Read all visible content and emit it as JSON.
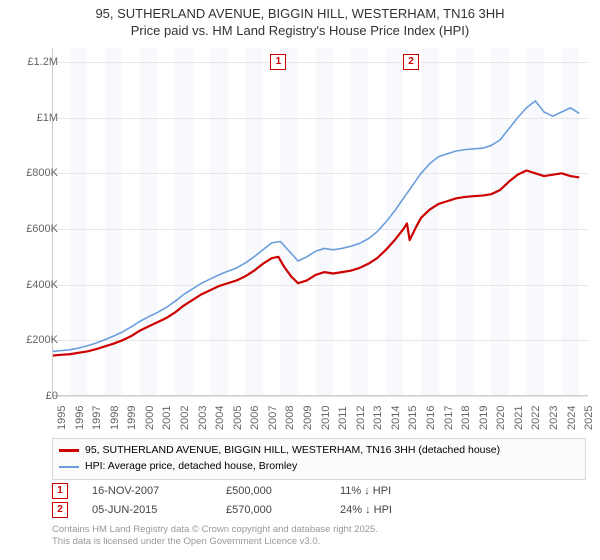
{
  "title_line1": "95, SUTHERLAND AVENUE, BIGGIN HILL, WESTERHAM, TN16 3HH",
  "title_line2": "Price paid vs. HM Land Registry's House Price Index (HPI)",
  "chart": {
    "type": "line",
    "background_color": "#ffffff",
    "grid_color": "#e6e6e6",
    "x_axis": {
      "min": 1995,
      "max": 2025.5,
      "ticks": [
        1995,
        1996,
        1997,
        1998,
        1999,
        2000,
        2001,
        2002,
        2003,
        2004,
        2005,
        2006,
        2007,
        2008,
        2009,
        2010,
        2011,
        2012,
        2013,
        2014,
        2015,
        2016,
        2017,
        2018,
        2019,
        2020,
        2021,
        2022,
        2023,
        2024,
        2025
      ],
      "label_fontsize": 11,
      "label_color": "#666666",
      "label_rotation": -90
    },
    "y_axis": {
      "min": 0,
      "max": 1250000,
      "ticks": [
        {
          "v": 0,
          "label": "£0"
        },
        {
          "v": 200000,
          "label": "£200K"
        },
        {
          "v": 400000,
          "label": "£400K"
        },
        {
          "v": 600000,
          "label": "£600K"
        },
        {
          "v": 800000,
          "label": "£800K"
        },
        {
          "v": 1000000,
          "label": "£1M"
        },
        {
          "v": 1200000,
          "label": "£1.2M"
        }
      ],
      "label_fontsize": 11,
      "label_color": "#666666"
    },
    "alternating_bands": {
      "colors": [
        "#ffffff",
        "#f1f5fb"
      ],
      "years": [
        1995,
        1996,
        1997,
        1998,
        1999,
        2000,
        2001,
        2002,
        2003,
        2004,
        2005,
        2006,
        2007,
        2008,
        2009,
        2010,
        2011,
        2012,
        2013,
        2014,
        2015,
        2016,
        2017,
        2018,
        2019,
        2020,
        2021,
        2022,
        2023,
        2024,
        2025
      ]
    },
    "series": [
      {
        "name": "price_paid",
        "label": "95, SUTHERLAND AVENUE, BIGGIN HILL, WESTERHAM, TN16 3HH (detached house)",
        "color": "#cc0000",
        "line_width": 2.2,
        "data": [
          {
            "x": 1995.0,
            "y": 145000
          },
          {
            "x": 1995.5,
            "y": 148000
          },
          {
            "x": 1996.0,
            "y": 150000
          },
          {
            "x": 1996.5,
            "y": 155000
          },
          {
            "x": 1997.0,
            "y": 160000
          },
          {
            "x": 1997.5,
            "y": 168000
          },
          {
            "x": 1998.0,
            "y": 178000
          },
          {
            "x": 1998.5,
            "y": 188000
          },
          {
            "x": 1999.0,
            "y": 200000
          },
          {
            "x": 1999.5,
            "y": 215000
          },
          {
            "x": 2000.0,
            "y": 235000
          },
          {
            "x": 2000.5,
            "y": 250000
          },
          {
            "x": 2001.0,
            "y": 265000
          },
          {
            "x": 2001.5,
            "y": 280000
          },
          {
            "x": 2002.0,
            "y": 300000
          },
          {
            "x": 2002.5,
            "y": 325000
          },
          {
            "x": 2003.0,
            "y": 345000
          },
          {
            "x": 2003.5,
            "y": 365000
          },
          {
            "x": 2004.0,
            "y": 380000
          },
          {
            "x": 2004.5,
            "y": 395000
          },
          {
            "x": 2005.0,
            "y": 405000
          },
          {
            "x": 2005.5,
            "y": 415000
          },
          {
            "x": 2006.0,
            "y": 430000
          },
          {
            "x": 2006.5,
            "y": 450000
          },
          {
            "x": 2007.0,
            "y": 475000
          },
          {
            "x": 2007.5,
            "y": 495000
          },
          {
            "x": 2007.88,
            "y": 500000
          },
          {
            "x": 2008.2,
            "y": 465000
          },
          {
            "x": 2008.6,
            "y": 430000
          },
          {
            "x": 2009.0,
            "y": 405000
          },
          {
            "x": 2009.5,
            "y": 415000
          },
          {
            "x": 2010.0,
            "y": 435000
          },
          {
            "x": 2010.5,
            "y": 445000
          },
          {
            "x": 2011.0,
            "y": 440000
          },
          {
            "x": 2011.5,
            "y": 445000
          },
          {
            "x": 2012.0,
            "y": 450000
          },
          {
            "x": 2012.5,
            "y": 460000
          },
          {
            "x": 2013.0,
            "y": 475000
          },
          {
            "x": 2013.5,
            "y": 495000
          },
          {
            "x": 2014.0,
            "y": 525000
          },
          {
            "x": 2014.5,
            "y": 560000
          },
          {
            "x": 2015.0,
            "y": 600000
          },
          {
            "x": 2015.2,
            "y": 620000
          },
          {
            "x": 2015.35,
            "y": 560000
          },
          {
            "x": 2015.43,
            "y": 570000
          },
          {
            "x": 2015.7,
            "y": 605000
          },
          {
            "x": 2016.0,
            "y": 640000
          },
          {
            "x": 2016.5,
            "y": 670000
          },
          {
            "x": 2017.0,
            "y": 690000
          },
          {
            "x": 2017.5,
            "y": 700000
          },
          {
            "x": 2018.0,
            "y": 710000
          },
          {
            "x": 2018.5,
            "y": 715000
          },
          {
            "x": 2019.0,
            "y": 718000
          },
          {
            "x": 2019.5,
            "y": 720000
          },
          {
            "x": 2020.0,
            "y": 725000
          },
          {
            "x": 2020.5,
            "y": 740000
          },
          {
            "x": 2021.0,
            "y": 770000
          },
          {
            "x": 2021.5,
            "y": 795000
          },
          {
            "x": 2022.0,
            "y": 810000
          },
          {
            "x": 2022.5,
            "y": 800000
          },
          {
            "x": 2023.0,
            "y": 790000
          },
          {
            "x": 2023.5,
            "y": 795000
          },
          {
            "x": 2024.0,
            "y": 800000
          },
          {
            "x": 2024.5,
            "y": 790000
          },
          {
            "x": 2025.0,
            "y": 785000
          }
        ]
      },
      {
        "name": "hpi",
        "label": "HPI: Average price, detached house, Bromley",
        "color": "#6a9edc",
        "line_width": 1.6,
        "data": [
          {
            "x": 1995.0,
            "y": 160000
          },
          {
            "x": 1995.5,
            "y": 163000
          },
          {
            "x": 1996.0,
            "y": 166000
          },
          {
            "x": 1996.5,
            "y": 172000
          },
          {
            "x": 1997.0,
            "y": 180000
          },
          {
            "x": 1997.5,
            "y": 190000
          },
          {
            "x": 1998.0,
            "y": 202000
          },
          {
            "x": 1998.5,
            "y": 215000
          },
          {
            "x": 1999.0,
            "y": 230000
          },
          {
            "x": 1999.5,
            "y": 248000
          },
          {
            "x": 2000.0,
            "y": 268000
          },
          {
            "x": 2000.5,
            "y": 285000
          },
          {
            "x": 2001.0,
            "y": 300000
          },
          {
            "x": 2001.5,
            "y": 318000
          },
          {
            "x": 2002.0,
            "y": 340000
          },
          {
            "x": 2002.5,
            "y": 365000
          },
          {
            "x": 2003.0,
            "y": 385000
          },
          {
            "x": 2003.5,
            "y": 405000
          },
          {
            "x": 2004.0,
            "y": 420000
          },
          {
            "x": 2004.5,
            "y": 435000
          },
          {
            "x": 2005.0,
            "y": 448000
          },
          {
            "x": 2005.5,
            "y": 460000
          },
          {
            "x": 2006.0,
            "y": 478000
          },
          {
            "x": 2006.5,
            "y": 500000
          },
          {
            "x": 2007.0,
            "y": 525000
          },
          {
            "x": 2007.5,
            "y": 550000
          },
          {
            "x": 2008.0,
            "y": 555000
          },
          {
            "x": 2008.5,
            "y": 520000
          },
          {
            "x": 2009.0,
            "y": 485000
          },
          {
            "x": 2009.5,
            "y": 500000
          },
          {
            "x": 2010.0,
            "y": 520000
          },
          {
            "x": 2010.5,
            "y": 530000
          },
          {
            "x": 2011.0,
            "y": 525000
          },
          {
            "x": 2011.5,
            "y": 530000
          },
          {
            "x": 2012.0,
            "y": 538000
          },
          {
            "x": 2012.5,
            "y": 548000
          },
          {
            "x": 2013.0,
            "y": 565000
          },
          {
            "x": 2013.5,
            "y": 590000
          },
          {
            "x": 2014.0,
            "y": 625000
          },
          {
            "x": 2014.5,
            "y": 665000
          },
          {
            "x": 2015.0,
            "y": 710000
          },
          {
            "x": 2015.5,
            "y": 755000
          },
          {
            "x": 2016.0,
            "y": 800000
          },
          {
            "x": 2016.5,
            "y": 835000
          },
          {
            "x": 2017.0,
            "y": 860000
          },
          {
            "x": 2017.5,
            "y": 870000
          },
          {
            "x": 2018.0,
            "y": 880000
          },
          {
            "x": 2018.5,
            "y": 885000
          },
          {
            "x": 2019.0,
            "y": 888000
          },
          {
            "x": 2019.5,
            "y": 890000
          },
          {
            "x": 2020.0,
            "y": 900000
          },
          {
            "x": 2020.5,
            "y": 920000
          },
          {
            "x": 2021.0,
            "y": 960000
          },
          {
            "x": 2021.5,
            "y": 1000000
          },
          {
            "x": 2022.0,
            "y": 1035000
          },
          {
            "x": 2022.5,
            "y": 1060000
          },
          {
            "x": 2023.0,
            "y": 1020000
          },
          {
            "x": 2023.5,
            "y": 1005000
          },
          {
            "x": 2024.0,
            "y": 1020000
          },
          {
            "x": 2024.5,
            "y": 1035000
          },
          {
            "x": 2025.0,
            "y": 1015000
          }
        ]
      }
    ],
    "sale_markers": [
      {
        "id": "1",
        "x": 2007.88,
        "y_top": 30000
      },
      {
        "id": "2",
        "x": 2015.43,
        "y_top": 30000
      }
    ]
  },
  "legend": {
    "series1_label": "95, SUTHERLAND AVENUE, BIGGIN HILL, WESTERHAM, TN16 3HH (detached house)",
    "series1_color": "#cc0000",
    "series2_label": "HPI: Average price, detached house, Bromley",
    "series2_color": "#6a9edc"
  },
  "sales": [
    {
      "marker": "1",
      "date": "16-NOV-2007",
      "price": "£500,000",
      "diff": "11% ↓ HPI"
    },
    {
      "marker": "2",
      "date": "05-JUN-2015",
      "price": "£570,000",
      "diff": "24% ↓ HPI"
    }
  ],
  "footer_line1": "Contains HM Land Registry data © Crown copyright and database right 2025.",
  "footer_line2": "This data is licensed under the Open Government Licence v3.0."
}
